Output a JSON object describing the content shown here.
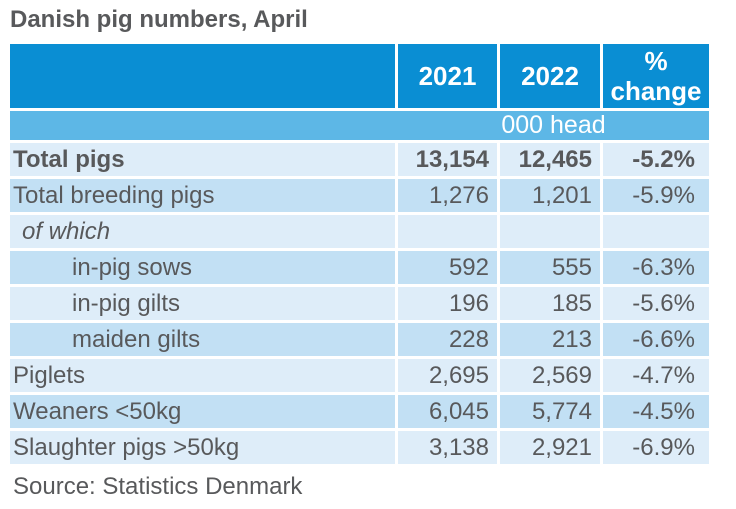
{
  "colors": {
    "header_blue": "#0a8ed3",
    "band_blue": "#5db7e6",
    "row_light": "#deedf9",
    "row_dark": "#c2e0f4",
    "text_dark": "#58595b"
  },
  "chart_data": {
    "type": "table",
    "title": "Danish pig numbers, April",
    "unit_band": "000 head",
    "column_headers": [
      "2021",
      "2022",
      "% change"
    ],
    "rows": [
      {
        "label": "Total pigs",
        "values": [
          "13,154",
          "12,465",
          "-5.2%"
        ]
      },
      {
        "label": "Total breeding pigs",
        "values": [
          "1,276",
          "1,201",
          "-5.9%"
        ]
      },
      {
        "label": "of which",
        "values": [
          "",
          "",
          ""
        ]
      },
      {
        "label": "in-pig sows",
        "values": [
          "592",
          "555",
          "-6.3%"
        ]
      },
      {
        "label": "in-pig gilts",
        "values": [
          "196",
          "185",
          "-5.6%"
        ]
      },
      {
        "label": "maiden gilts",
        "values": [
          "228",
          "213",
          "-6.6%"
        ]
      },
      {
        "label": "Piglets",
        "values": [
          "2,695",
          "2,569",
          "-4.7%"
        ]
      },
      {
        "label": "Weaners <50kg",
        "values": [
          "6,045",
          "5,774",
          "-4.5%"
        ]
      },
      {
        "label": "Slaughter pigs >50kg",
        "values": [
          "3,138",
          "2,921",
          "-6.9%"
        ]
      }
    ],
    "source": "Source: Statistics Denmark"
  }
}
